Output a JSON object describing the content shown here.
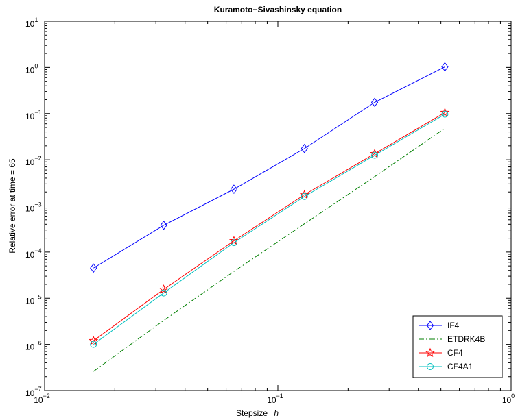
{
  "chart_data": {
    "type": "line",
    "title": "Kuramoto−Sivashinsky equation",
    "xlabel_text": "Stepsize",
    "xlabel_var": "h",
    "ylabel": "Relative error at time = 65",
    "xscale": "log",
    "yscale": "log",
    "xlim": [
      0.01,
      1
    ],
    "ylim": [
      1e-07,
      10
    ],
    "grid": false,
    "legend_position": "bottom-right",
    "x_ticks": [
      {
        "value": 0.01,
        "base": "10",
        "exp": "−2"
      },
      {
        "value": 0.1,
        "base": "10",
        "exp": "−1"
      },
      {
        "value": 1,
        "base": "10",
        "exp": "0"
      }
    ],
    "y_ticks": [
      {
        "value": 1e-07,
        "base": "10",
        "exp": "−7"
      },
      {
        "value": 1e-06,
        "base": "10",
        "exp": "−6"
      },
      {
        "value": 1e-05,
        "base": "10",
        "exp": "−5"
      },
      {
        "value": 0.0001,
        "base": "10",
        "exp": "−4"
      },
      {
        "value": 0.001,
        "base": "10",
        "exp": "−3"
      },
      {
        "value": 0.01,
        "base": "10",
        "exp": "−2"
      },
      {
        "value": 0.1,
        "base": "10",
        "exp": "−1"
      },
      {
        "value": 1,
        "base": "10",
        "exp": "0"
      },
      {
        "value": 10,
        "base": "10",
        "exp": "1"
      }
    ],
    "x": [
      0.0162,
      0.0324,
      0.0648,
      0.13,
      0.26,
      0.52
    ],
    "series": [
      {
        "name": "IF4",
        "color": "#0000ff",
        "marker": "diamond",
        "line": "solid",
        "values": [
          4.5e-05,
          0.00038,
          0.0023,
          0.0175,
          0.175,
          1.03
        ]
      },
      {
        "name": "ETDRK4B",
        "color": "#007f00",
        "marker": "none",
        "line": "dashdot",
        "values": [
          2.6e-07,
          3.3e-06,
          3.8e-05,
          0.00041,
          0.0043,
          0.048
        ]
      },
      {
        "name": "CF4",
        "color": "#ff0000",
        "marker": "star",
        "line": "solid",
        "values": [
          1.2e-06,
          1.55e-05,
          0.000175,
          0.00175,
          0.0135,
          0.105
        ]
      },
      {
        "name": "CF4A1",
        "color": "#00bfbf",
        "marker": "circle",
        "line": "solid",
        "values": [
          1e-06,
          1.3e-05,
          0.00016,
          0.0016,
          0.0125,
          0.097
        ]
      }
    ]
  }
}
